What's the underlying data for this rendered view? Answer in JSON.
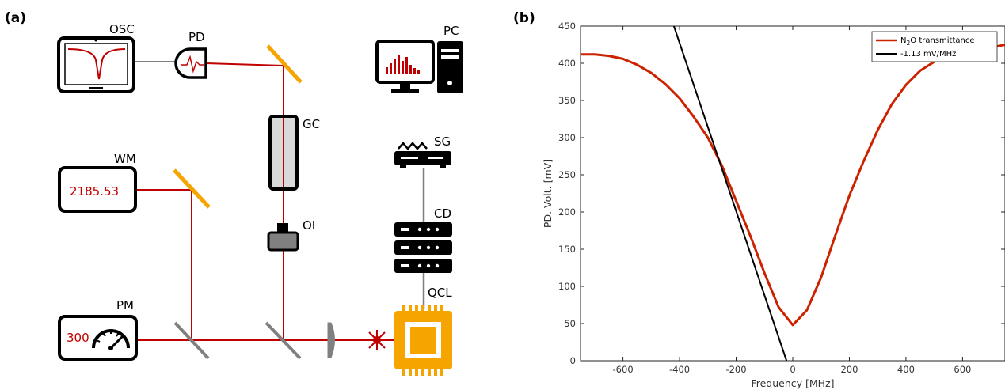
{
  "panel_a": {
    "label": "(a)",
    "components": {
      "osc": "OSC",
      "pd": "PD",
      "pc": "PC",
      "gc": "GC",
      "wm": "WM",
      "wm_value": "2185.53",
      "sg": "SG",
      "oi": "OI",
      "cd": "CD",
      "pm": "PM",
      "pm_value": "300",
      "qcl": "QCL"
    },
    "colors": {
      "beam": "#c00000",
      "mirror": "#f5a400",
      "chip": "#f5a400",
      "optic": "#808080"
    }
  },
  "panel_b": {
    "label": "(b)",
    "chart_data": {
      "type": "line",
      "xlabel": "Frequency [MHz]",
      "ylabel": "PD. Volt. [mV]",
      "xlim": [
        -750,
        750
      ],
      "ylim": [
        0,
        450
      ],
      "xticks": [
        -600,
        -400,
        -200,
        0,
        200,
        400,
        600
      ],
      "yticks": [
        0,
        50,
        100,
        150,
        200,
        250,
        300,
        350,
        400,
        450
      ],
      "grid": false,
      "legend_position": "top-right",
      "series": [
        {
          "name_main": "N",
          "name_sub": "2",
          "name_rest": "O transmittance",
          "color": "#cc2200",
          "x": [
            -750,
            -700,
            -650,
            -600,
            -550,
            -500,
            -450,
            -400,
            -350,
            -300,
            -250,
            -200,
            -150,
            -100,
            -50,
            0,
            50,
            100,
            150,
            200,
            250,
            300,
            350,
            400,
            450,
            500,
            550,
            600,
            650,
            700,
            750
          ],
          "y": [
            412,
            412,
            410,
            406,
            398,
            387,
            372,
            353,
            328,
            300,
            262,
            215,
            168,
            118,
            72,
            48,
            68,
            112,
            168,
            222,
            268,
            310,
            345,
            371,
            390,
            402,
            410,
            414,
            417,
            421,
            425
          ]
        },
        {
          "name": "-1.13 mV/MHz",
          "color": "#000000",
          "x": [
            -420,
            -22
          ],
          "y": [
            450,
            0
          ]
        }
      ]
    }
  }
}
